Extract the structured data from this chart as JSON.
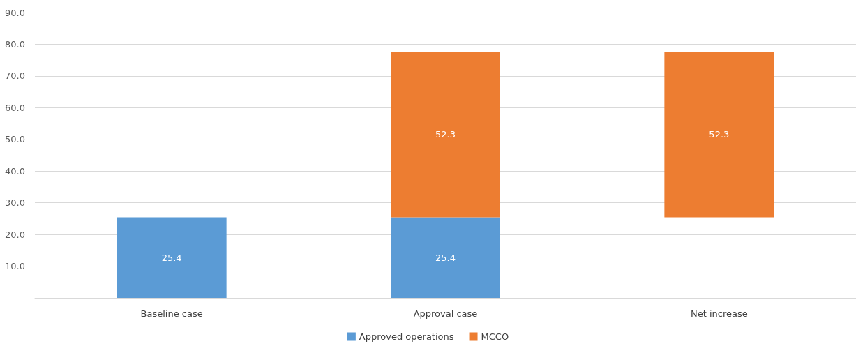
{
  "chart_data": {
    "type": "bar",
    "categories": [
      "Baseline case",
      "Approval case",
      "Net increase"
    ],
    "series": [
      {
        "name": "Approved operations",
        "color": "#5b9bd5",
        "values": [
          25.4,
          25.4,
          null
        ]
      },
      {
        "name": "MCCO",
        "color": "#ed7d31",
        "values": [
          null,
          52.3,
          52.3
        ],
        "base": [
          null,
          25.4,
          25.4
        ]
      }
    ],
    "ylim": [
      0,
      90
    ],
    "yticks": [
      {
        "value": 0,
        "label": "-"
      },
      {
        "value": 10,
        "label": "10.0"
      },
      {
        "value": 20,
        "label": "20.0"
      },
      {
        "value": 30,
        "label": "30.0"
      },
      {
        "value": 40,
        "label": "40.0"
      },
      {
        "value": 50,
        "label": "50.0"
      },
      {
        "value": 60,
        "label": "60.0"
      },
      {
        "value": 70,
        "label": "70.0"
      },
      {
        "value": 80,
        "label": "80.0"
      },
      {
        "value": 90,
        "label": "90.0"
      }
    ],
    "grid": "y",
    "legend": "bottom",
    "data_labels": true
  }
}
